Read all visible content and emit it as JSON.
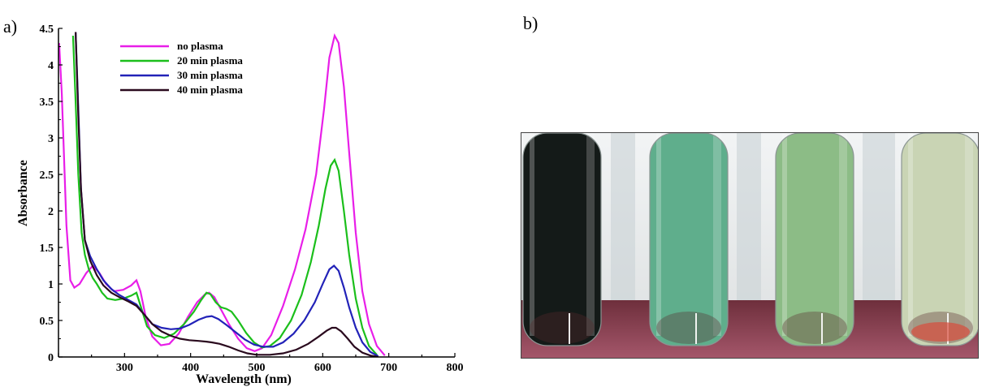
{
  "panel_labels": {
    "a": "a)",
    "b": "b)"
  },
  "chart_data": {
    "type": "line",
    "xlabel": "Wavelength (nm)",
    "ylabel": "Absorbance",
    "xlim": [
      200,
      800
    ],
    "ylim": [
      0,
      4.5
    ],
    "xticks": [
      300,
      400,
      500,
      600,
      700,
      800
    ],
    "yticks": [
      0,
      0.5,
      1,
      1.5,
      2,
      2.5,
      3,
      3.5,
      4,
      4.5
    ],
    "yticklabels": [
      "0",
      "0.5",
      "1",
      "1.5",
      "2",
      "2.5",
      "3",
      "3.5",
      "4",
      "4.5"
    ],
    "legend_position": "top-left",
    "series": [
      {
        "name": "no plasma",
        "color": "#e81ee8",
        "points": [
          [
            201,
            4.3
          ],
          [
            205,
            3.6
          ],
          [
            212,
            1.8
          ],
          [
            218,
            1.05
          ],
          [
            224,
            0.95
          ],
          [
            232,
            1.0
          ],
          [
            242,
            1.15
          ],
          [
            252,
            1.25
          ],
          [
            262,
            1.15
          ],
          [
            272,
            1.0
          ],
          [
            284,
            0.9
          ],
          [
            298,
            0.92
          ],
          [
            310,
            0.98
          ],
          [
            318,
            1.05
          ],
          [
            324,
            0.9
          ],
          [
            332,
            0.55
          ],
          [
            342,
            0.28
          ],
          [
            355,
            0.16
          ],
          [
            368,
            0.18
          ],
          [
            382,
            0.32
          ],
          [
            396,
            0.55
          ],
          [
            410,
            0.75
          ],
          [
            422,
            0.86
          ],
          [
            428,
            0.88
          ],
          [
            436,
            0.82
          ],
          [
            446,
            0.65
          ],
          [
            458,
            0.45
          ],
          [
            472,
            0.25
          ],
          [
            485,
            0.12
          ],
          [
            497,
            0.08
          ],
          [
            508,
            0.12
          ],
          [
            522,
            0.3
          ],
          [
            540,
            0.7
          ],
          [
            558,
            1.2
          ],
          [
            574,
            1.75
          ],
          [
            590,
            2.5
          ],
          [
            602,
            3.4
          ],
          [
            610,
            4.1
          ],
          [
            618,
            4.4
          ],
          [
            624,
            4.3
          ],
          [
            632,
            3.7
          ],
          [
            640,
            2.8
          ],
          [
            650,
            1.7
          ],
          [
            660,
            0.9
          ],
          [
            670,
            0.45
          ],
          [
            682,
            0.15
          ],
          [
            694,
            0.02
          ]
        ]
      },
      {
        "name": "20 min plasma",
        "color": "#1bbf1b",
        "points": [
          [
            222,
            4.4
          ],
          [
            226,
            3.5
          ],
          [
            230,
            2.5
          ],
          [
            235,
            1.7
          ],
          [
            240,
            1.4
          ],
          [
            246,
            1.2
          ],
          [
            252,
            1.08
          ],
          [
            258,
            1.0
          ],
          [
            266,
            0.88
          ],
          [
            274,
            0.8
          ],
          [
            286,
            0.78
          ],
          [
            298,
            0.8
          ],
          [
            310,
            0.84
          ],
          [
            318,
            0.88
          ],
          [
            326,
            0.65
          ],
          [
            334,
            0.42
          ],
          [
            346,
            0.3
          ],
          [
            360,
            0.26
          ],
          [
            375,
            0.32
          ],
          [
            390,
            0.45
          ],
          [
            405,
            0.62
          ],
          [
            416,
            0.78
          ],
          [
            424,
            0.88
          ],
          [
            430,
            0.86
          ],
          [
            438,
            0.75
          ],
          [
            446,
            0.68
          ],
          [
            454,
            0.66
          ],
          [
            462,
            0.62
          ],
          [
            472,
            0.5
          ],
          [
            484,
            0.33
          ],
          [
            496,
            0.2
          ],
          [
            508,
            0.13
          ],
          [
            520,
            0.15
          ],
          [
            535,
            0.26
          ],
          [
            552,
            0.5
          ],
          [
            568,
            0.85
          ],
          [
            582,
            1.3
          ],
          [
            594,
            1.8
          ],
          [
            604,
            2.3
          ],
          [
            612,
            2.62
          ],
          [
            618,
            2.7
          ],
          [
            624,
            2.55
          ],
          [
            632,
            2.0
          ],
          [
            640,
            1.4
          ],
          [
            650,
            0.8
          ],
          [
            660,
            0.4
          ],
          [
            670,
            0.15
          ],
          [
            682,
            0.03
          ]
        ]
      },
      {
        "name": "30 min plasma",
        "color": "#2222b8",
        "points": [
          [
            226,
            4.45
          ],
          [
            230,
            3.4
          ],
          [
            234,
            2.3
          ],
          [
            240,
            1.6
          ],
          [
            248,
            1.38
          ],
          [
            258,
            1.2
          ],
          [
            268,
            1.05
          ],
          [
            280,
            0.93
          ],
          [
            292,
            0.85
          ],
          [
            306,
            0.78
          ],
          [
            318,
            0.72
          ],
          [
            330,
            0.58
          ],
          [
            342,
            0.45
          ],
          [
            356,
            0.4
          ],
          [
            370,
            0.38
          ],
          [
            384,
            0.39
          ],
          [
            398,
            0.44
          ],
          [
            412,
            0.51
          ],
          [
            424,
            0.55
          ],
          [
            432,
            0.56
          ],
          [
            442,
            0.52
          ],
          [
            454,
            0.44
          ],
          [
            468,
            0.34
          ],
          [
            482,
            0.24
          ],
          [
            496,
            0.17
          ],
          [
            510,
            0.14
          ],
          [
            525,
            0.14
          ],
          [
            540,
            0.2
          ],
          [
            556,
            0.32
          ],
          [
            572,
            0.5
          ],
          [
            588,
            0.75
          ],
          [
            600,
            1.0
          ],
          [
            610,
            1.2
          ],
          [
            617,
            1.25
          ],
          [
            624,
            1.18
          ],
          [
            632,
            0.95
          ],
          [
            640,
            0.68
          ],
          [
            650,
            0.4
          ],
          [
            660,
            0.2
          ],
          [
            672,
            0.07
          ],
          [
            684,
            0.01
          ]
        ]
      },
      {
        "name": "40 min plasma",
        "color": "#2a0a1e",
        "points": [
          [
            226,
            4.45
          ],
          [
            230,
            3.3
          ],
          [
            234,
            2.3
          ],
          [
            240,
            1.6
          ],
          [
            248,
            1.32
          ],
          [
            258,
            1.12
          ],
          [
            268,
            0.98
          ],
          [
            280,
            0.88
          ],
          [
            292,
            0.82
          ],
          [
            306,
            0.76
          ],
          [
            318,
            0.7
          ],
          [
            330,
            0.58
          ],
          [
            342,
            0.45
          ],
          [
            356,
            0.35
          ],
          [
            370,
            0.29
          ],
          [
            384,
            0.25
          ],
          [
            398,
            0.23
          ],
          [
            412,
            0.22
          ],
          [
            424,
            0.21
          ],
          [
            432,
            0.2
          ],
          [
            444,
            0.18
          ],
          [
            458,
            0.14
          ],
          [
            472,
            0.09
          ],
          [
            486,
            0.05
          ],
          [
            500,
            0.03
          ],
          [
            520,
            0.03
          ],
          [
            540,
            0.05
          ],
          [
            560,
            0.1
          ],
          [
            578,
            0.18
          ],
          [
            594,
            0.28
          ],
          [
            606,
            0.36
          ],
          [
            614,
            0.4
          ],
          [
            620,
            0.4
          ],
          [
            628,
            0.35
          ],
          [
            638,
            0.25
          ],
          [
            648,
            0.14
          ],
          [
            660,
            0.06
          ],
          [
            672,
            0.02
          ],
          [
            684,
            0.0
          ]
        ]
      }
    ]
  },
  "photo": {
    "tubes": [
      {
        "fill_color": "#141a18"
      },
      {
        "fill_color": "#5fae8c"
      },
      {
        "fill_color": "#8cbc86"
      },
      {
        "fill_color": "#c9d4b4"
      }
    ]
  }
}
